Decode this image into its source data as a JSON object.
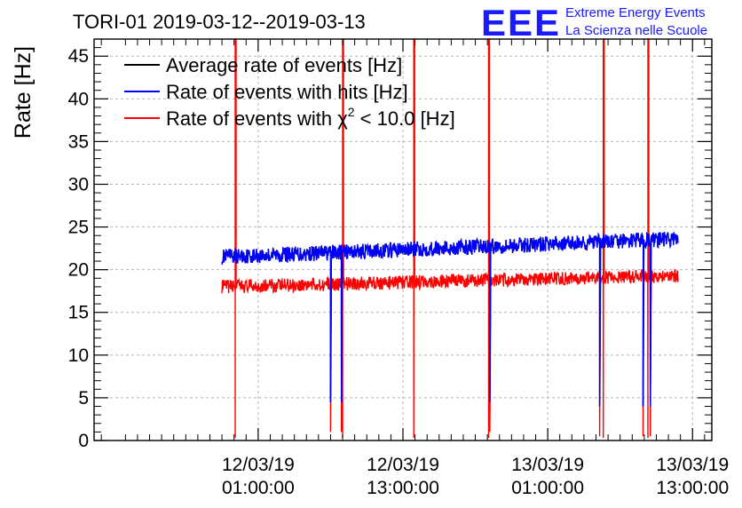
{
  "chart_data": {
    "type": "line",
    "title": "TORI-01 2019-03-12--2019-03-13",
    "ylabel": "Rate [Hz]",
    "xlabel": "",
    "ylim": [
      0,
      47
    ],
    "xlim_hours": [
      -12.6,
      38.6
    ],
    "yticks": [
      0,
      5,
      10,
      15,
      20,
      25,
      30,
      35,
      40,
      45
    ],
    "xticks": [
      {
        "hours": 1,
        "date": "12/03/19",
        "time": "01:00:00"
      },
      {
        "hours": 13,
        "date": "12/03/19",
        "time": "13:00:00"
      },
      {
        "hours": 25,
        "date": "13/03/19",
        "time": "01:00:00"
      },
      {
        "hours": 37,
        "date": "13/03/19",
        "time": "13:00:00"
      }
    ],
    "grid": true,
    "legend_position": "top-left",
    "time_range_hours": [
      -2,
      35.8
    ],
    "series": [
      {
        "name": "Average rate of events [Hz]",
        "color": "#000000",
        "baseline_start": 21.5,
        "baseline_end": 23.6,
        "noise": 0.9
      },
      {
        "name": "Rate of events with hits [Hz]",
        "color": "#0000ff",
        "baseline_start": 21.5,
        "baseline_end": 23.6,
        "noise": 0.9
      },
      {
        "name": "Rate of events with χ2 < 10.0 [Hz]",
        "name_text": "Rate of events with χ",
        "name_sup": "2",
        "name_suffix": " < 10.0 [Hz]",
        "color": "#ff0000",
        "baseline_start": 18.0,
        "baseline_end": 19.3,
        "noise": 0.8
      }
    ],
    "spikes_up_hours": [
      -0.9,
      8.0,
      13.9,
      20.1,
      29.6,
      33.3
    ],
    "spikes_down_hours": [
      7.0,
      7.9,
      20.2,
      29.3,
      32.9,
      33.5
    ],
    "spikes_down_low": [
      1,
      1,
      1,
      0.5,
      0.5,
      0.5
    ]
  },
  "branding": {
    "logo": "EEE",
    "line1": "Extreme Energy Events",
    "line2": "La Scienza nelle Scuole"
  }
}
